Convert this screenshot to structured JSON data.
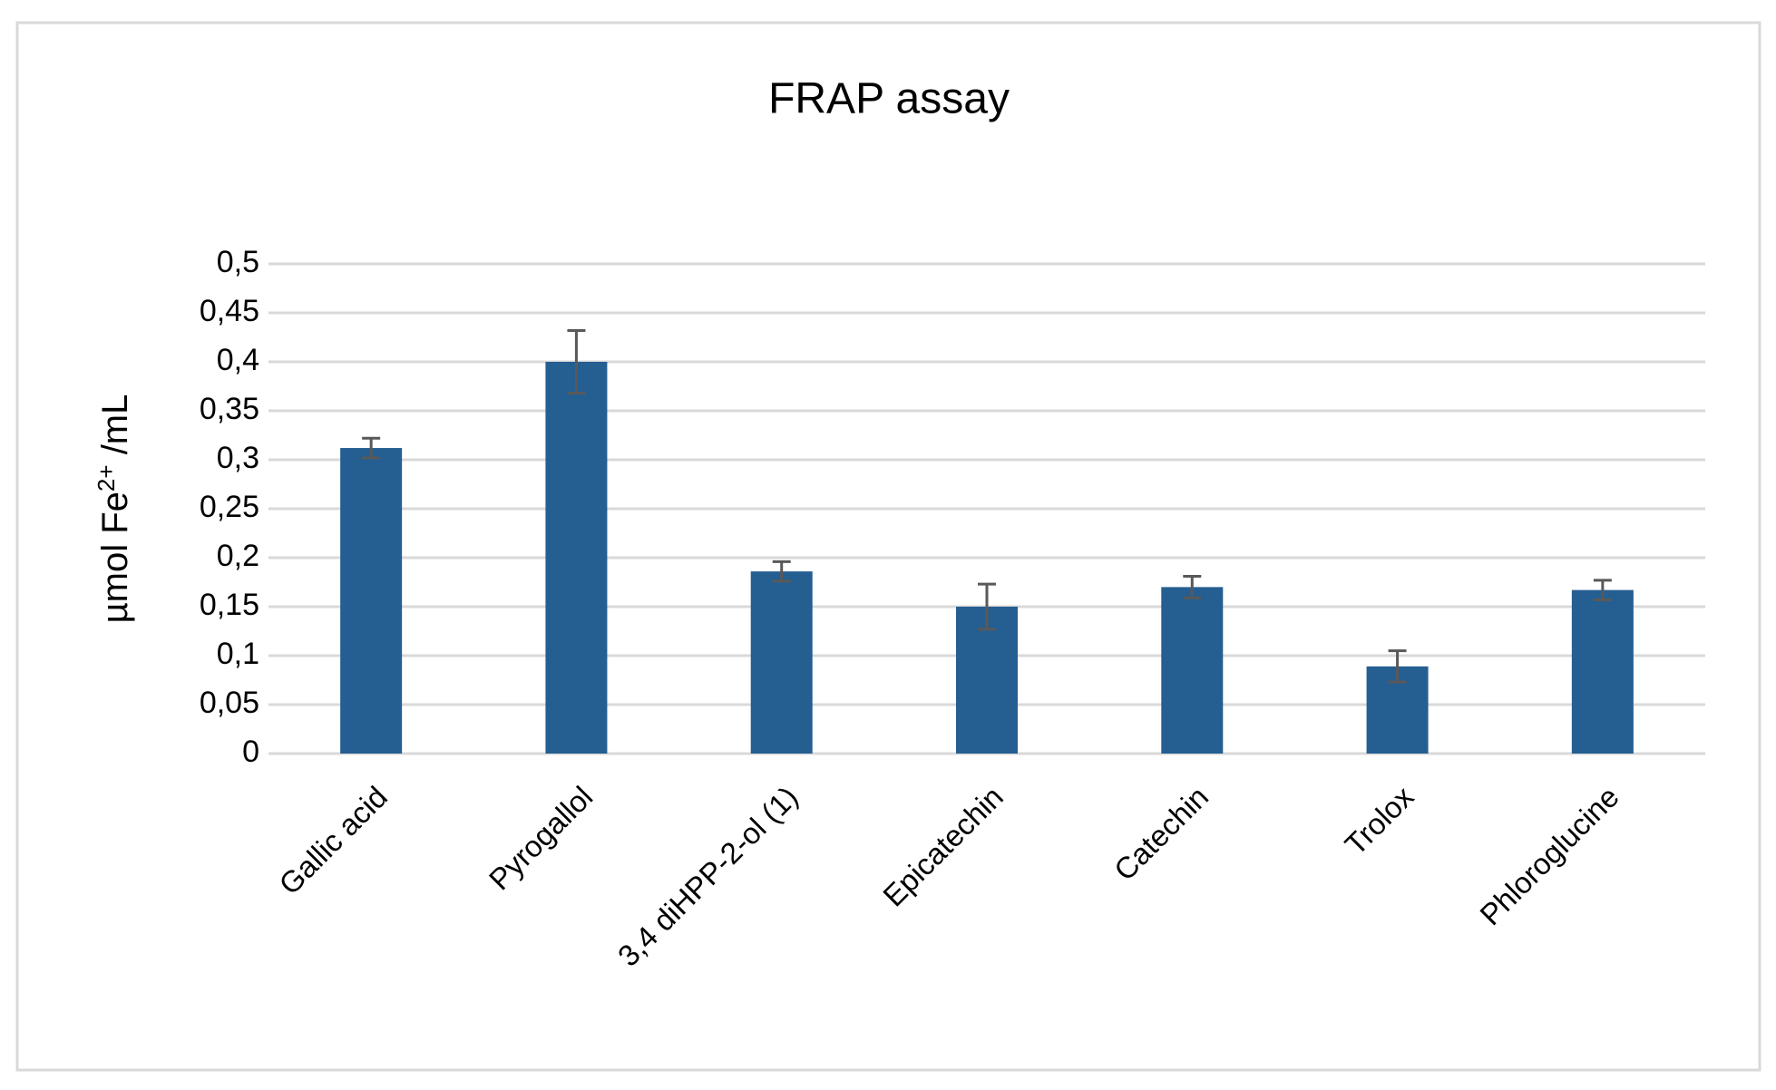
{
  "chart_data": {
    "type": "bar",
    "title": "FRAP assay",
    "y_label": "µmol Fe",
    "y_label_sup": "2+",
    "y_label_end": " /mL",
    "categories": [
      "Gallic acid",
      "Pyrogallol",
      "3,4 diHPP-2-ol (1)",
      "Epicatechin",
      "Catechin",
      "Trolox",
      "Phloroglucine"
    ],
    "values": [
      0.312,
      0.4,
      0.186,
      0.15,
      0.17,
      0.089,
      0.167
    ],
    "errors": [
      0.01,
      0.032,
      0.01,
      0.023,
      0.011,
      0.016,
      0.01
    ],
    "color": "#255e91",
    "error_color": "#595959",
    "ylim": [
      0,
      0.5
    ],
    "yticks": [
      0,
      {
        "value": 0.05,
        "label": "0,05"
      },
      {
        "value": 0.1,
        "label": "0,1"
      },
      {
        "value": 0.15,
        "label": "0,15"
      },
      {
        "value": 0.2,
        "label": "0,2"
      },
      {
        "value": 0.25,
        "label": "0,25"
      },
      {
        "value": 0.3,
        "label": "0,3"
      },
      {
        "value": 0.35,
        "label": "0,35"
      },
      {
        "value": 0.4,
        "label": "0,4"
      },
      {
        "value": 0.45,
        "label": "0,45"
      },
      {
        "value": 0.5,
        "label": "0,5"
      }
    ],
    "grid": true
  }
}
